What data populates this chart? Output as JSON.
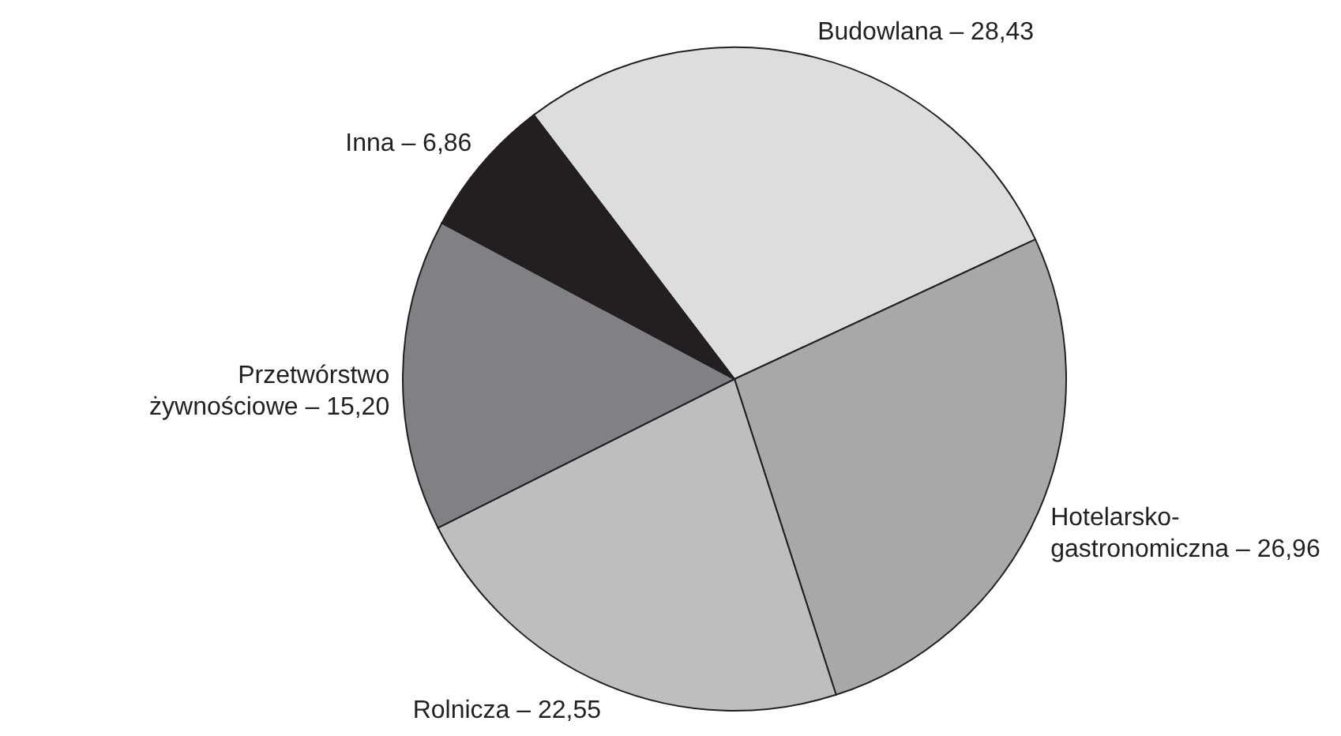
{
  "chart_data": {
    "type": "pie",
    "categories": [
      "Budowlana",
      "Hotelarsko-gastronomiczna",
      "Rolnicza",
      "Przetwórstwo żywnościowe",
      "Inna"
    ],
    "values": [
      28.43,
      26.96,
      22.55,
      15.2,
      6.86
    ],
    "value_labels": [
      "28,43",
      "26,96",
      "22,55",
      "15,20",
      "6,86"
    ],
    "colors": [
      "#dcdddf",
      "#a7a8aa",
      "#bdbec0",
      "#808184",
      "#231f20"
    ]
  }
}
